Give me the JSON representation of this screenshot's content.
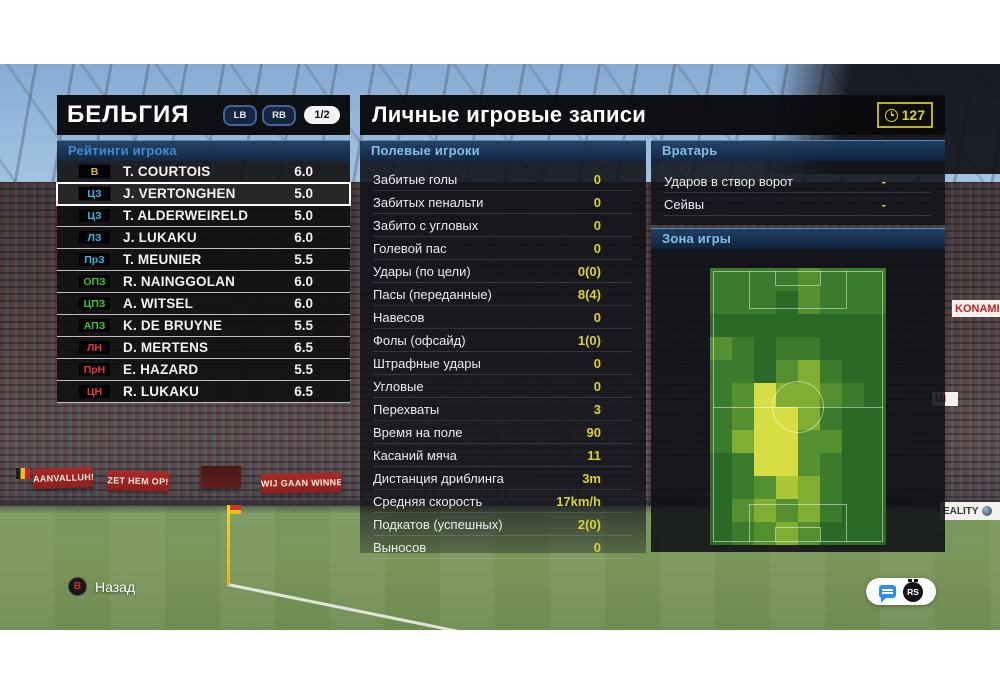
{
  "left_panel": {
    "title": "БЕЛЬГИЯ",
    "lb_label": "LB",
    "rb_label": "RB",
    "page_indicator": "1/2",
    "ratings_header": "Рейтинги игрока",
    "players": [
      {
        "pos": "В",
        "pos_color": "#e3b71e",
        "name": "T. COURTOIS",
        "rating": "6.0",
        "selected": false
      },
      {
        "pos": "ЦЗ",
        "pos_color": "#35b5e8",
        "name": "J. VERTONGHEN",
        "rating": "5.0",
        "selected": true
      },
      {
        "pos": "ЦЗ",
        "pos_color": "#35b5e8",
        "name": "T. ALDERWEIRELD",
        "rating": "5.0",
        "selected": false
      },
      {
        "pos": "ЛЗ",
        "pos_color": "#35b5e8",
        "name": "J. LUKAKU",
        "rating": "6.0",
        "selected": false
      },
      {
        "pos": "ПрЗ",
        "pos_color": "#35b5e8",
        "name": "T. MEUNIER",
        "rating": "5.5",
        "selected": false
      },
      {
        "pos": "ОПЗ",
        "pos_color": "#45c42a",
        "name": "R. NAINGGOLAN",
        "rating": "6.0",
        "selected": false
      },
      {
        "pos": "ЦПЗ",
        "pos_color": "#45c42a",
        "name": "A. WITSEL",
        "rating": "6.0",
        "selected": false
      },
      {
        "pos": "АПЗ",
        "pos_color": "#45c42a",
        "name": "K. DE BRUYNE",
        "rating": "5.5",
        "selected": false
      },
      {
        "pos": "ЛН",
        "pos_color": "#e03a30",
        "name": "D. MERTENS",
        "rating": "6.5",
        "selected": false
      },
      {
        "pos": "ПрН",
        "pos_color": "#e03a30",
        "name": "E. HAZARD",
        "rating": "5.5",
        "selected": false
      },
      {
        "pos": "ЦН",
        "pos_color": "#e03a30",
        "name": "R. LUKAKU",
        "rating": "6.5",
        "selected": false
      }
    ]
  },
  "main_panel": {
    "title": "Личные игровые записи",
    "timer_value": "127",
    "field_players": {
      "header": "Полевые игроки",
      "stats": [
        {
          "label": "Забитые голы",
          "value": "0"
        },
        {
          "label": "Забитых пенальти",
          "value": "0"
        },
        {
          "label": "Забито с угловых",
          "value": "0"
        },
        {
          "label": "Голевой пас",
          "value": "0"
        },
        {
          "label": "Удары (по цели)",
          "value": "0(0)"
        },
        {
          "label": "Пасы (переданные)",
          "value": "8(4)"
        },
        {
          "label": "Навесов",
          "value": "0"
        },
        {
          "label": "Фолы (офсайд)",
          "value": "1(0)"
        },
        {
          "label": "Штрафные удары",
          "value": "0"
        },
        {
          "label": "Угловые",
          "value": "0"
        },
        {
          "label": "Перехваты",
          "value": "3"
        },
        {
          "label": "Время на поле",
          "value": "90"
        },
        {
          "label": "Касаний мяча",
          "value": "11"
        },
        {
          "label": "Дистанция дриблинга",
          "value": "3m"
        },
        {
          "label": "Средняя скорость",
          "value": "17km/h"
        },
        {
          "label": "Подкатов (успешных)",
          "value": "2(0)"
        },
        {
          "label": "Выносов",
          "value": "0"
        }
      ]
    },
    "goalkeeper": {
      "header": "Вратарь",
      "stats": [
        {
          "label": "Ударов в створ ворот",
          "value": "-"
        },
        {
          "label": "Сейвы",
          "value": "-"
        }
      ]
    },
    "zone": {
      "header": "Зона игры",
      "heatmap": {
        "palette": [
          "#2a6a26",
          "#3a7c2c",
          "#549030",
          "#7fae32",
          "#abc736",
          "#d6de44"
        ],
        "cells": [
          [
            1,
            1,
            1,
            1,
            2,
            1,
            1,
            1
          ],
          [
            1,
            1,
            1,
            0,
            2,
            1,
            1,
            1
          ],
          [
            0,
            0,
            0,
            0,
            0,
            0,
            0,
            0
          ],
          [
            2,
            1,
            0,
            1,
            1,
            0,
            0,
            0
          ],
          [
            1,
            1,
            0,
            2,
            3,
            1,
            0,
            0
          ],
          [
            1,
            2,
            5,
            3,
            3,
            2,
            1,
            0
          ],
          [
            1,
            2,
            5,
            5,
            3,
            1,
            0,
            0
          ],
          [
            1,
            3,
            5,
            5,
            2,
            2,
            0,
            0
          ],
          [
            0,
            1,
            5,
            5,
            2,
            1,
            0,
            0
          ],
          [
            0,
            1,
            2,
            4,
            3,
            1,
            0,
            0
          ],
          [
            0,
            2,
            3,
            2,
            3,
            1,
            0,
            0
          ],
          [
            0,
            1,
            2,
            3,
            2,
            0,
            0,
            0
          ]
        ]
      }
    }
  },
  "footer": {
    "back_button_glyph": "B",
    "back_label": "Назад",
    "stick_label": "RS"
  },
  "background": {
    "banners": [
      "AANVALLUH!",
      "ZET HEM OP!",
      "WIJ GAAN WINNEN"
    ],
    "boards": [
      "KONAMI",
      "MI",
      "EALITY"
    ]
  }
}
